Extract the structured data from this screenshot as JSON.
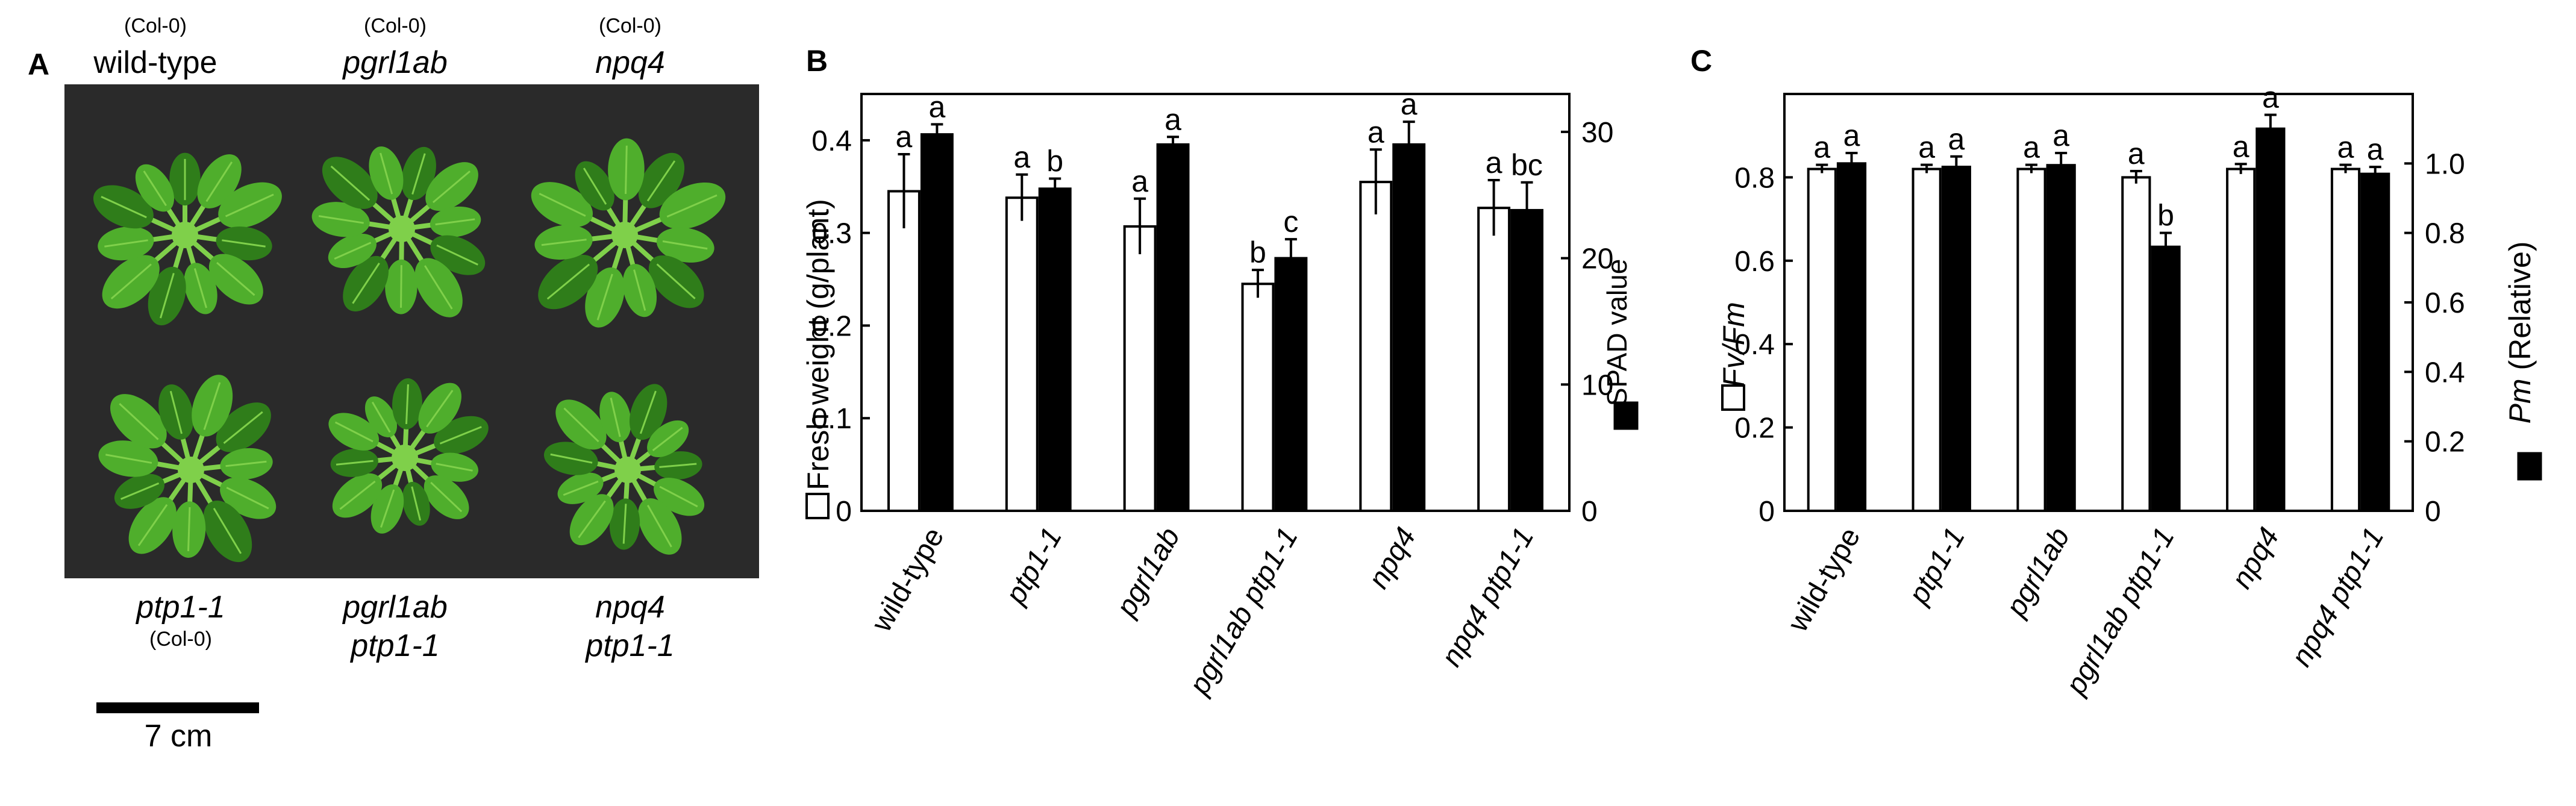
{
  "panel_a": {
    "letter": "A",
    "top_row": [
      {
        "ecotype": "(Col-0)",
        "genotype": "wild-type",
        "italic": false
      },
      {
        "ecotype": "(Col-0)",
        "genotype": "pgrl1ab",
        "italic": true
      },
      {
        "ecotype": "(Col-0)",
        "genotype": "npq4",
        "italic": true
      }
    ],
    "bottom_row": [
      {
        "line1": "ptp1-1",
        "line2": "(Col-0)"
      },
      {
        "line1": "pgrl1ab",
        "line2": "ptp1-1"
      },
      {
        "line1": "npq4",
        "line2": "ptp1-1"
      }
    ],
    "scale_label": "7 cm",
    "photo_colors": {
      "background": "#2a2a2a",
      "leaf": "#4fae2c",
      "leaf_dark": "#2f7d1a",
      "leaf_light": "#7fd04a"
    }
  },
  "chart_data": [
    {
      "type": "bar",
      "panel": "B",
      "categories": [
        "wild-type",
        "ptp1-1",
        "pgrl1ab",
        "pgrl1ab ptp1-1",
        "npq4",
        "npq4 ptp1-1"
      ],
      "ylabel_left": "Fresh weight (g/plant)",
      "ylabel_right": "SPAD value",
      "left_axis": {
        "ylim": [
          0,
          0.45
        ],
        "ticks": [
          "0",
          "0.1",
          "0.2",
          "0.3",
          "0.4"
        ]
      },
      "right_axis": {
        "ylim": [
          0,
          33
        ],
        "ticks": [
          "0",
          "10",
          "20",
          "30"
        ]
      },
      "series": [
        {
          "name": "Fresh weight",
          "fill": "#ffffff",
          "axis": "left",
          "values": [
            0.345,
            0.338,
            0.307,
            0.245,
            0.355,
            0.327
          ],
          "errors": [
            0.04,
            0.025,
            0.03,
            0.015,
            0.035,
            0.03
          ],
          "letters": [
            "a",
            "a",
            "a",
            "b",
            "a",
            "a"
          ]
        },
        {
          "name": "SPAD value",
          "fill": "#000000",
          "axis": "right",
          "values": [
            29.8,
            25.5,
            29.0,
            20.0,
            29.0,
            23.8
          ],
          "errors": [
            0.8,
            0.8,
            0.6,
            1.5,
            1.8,
            2.2
          ],
          "letters": [
            "a",
            "b",
            "a",
            "c",
            "a",
            "bc"
          ]
        }
      ]
    },
    {
      "type": "bar",
      "panel": "C",
      "categories": [
        "wild-type",
        "ptp1-1",
        "pgrl1ab",
        "pgrl1ab ptp1-1",
        "npq4",
        "npq4 ptp1-1"
      ],
      "ylabel_left": "Fv/Fm",
      "ylabel_right": "Pm (Relative)",
      "left_axis": {
        "ylim": [
          0,
          1.0
        ],
        "ticks": [
          "0",
          "0.2",
          "0.4",
          "0.6",
          "0.8"
        ]
      },
      "right_axis": {
        "ylim": [
          0,
          1.2
        ],
        "ticks": [
          "0",
          "0.2",
          "0.4",
          "0.6",
          "0.8",
          "1.0"
        ]
      },
      "series": [
        {
          "name": "Fv/Fm",
          "fill": "#ffffff",
          "axis": "left",
          "values": [
            0.82,
            0.82,
            0.82,
            0.8,
            0.82,
            0.82
          ],
          "errors": [
            0.01,
            0.01,
            0.01,
            0.015,
            0.012,
            0.01
          ],
          "letters": [
            "a",
            "a",
            "a",
            "a",
            "a",
            "a"
          ]
        },
        {
          "name": "Pm (Relative)",
          "fill": "#000000",
          "axis": "right",
          "values": [
            1.0,
            0.99,
            0.995,
            0.76,
            1.1,
            0.97
          ],
          "errors": [
            0.03,
            0.03,
            0.035,
            0.04,
            0.04,
            0.02
          ],
          "letters": [
            "a",
            "a",
            "a",
            "b",
            "a",
            "a"
          ]
        }
      ]
    }
  ]
}
